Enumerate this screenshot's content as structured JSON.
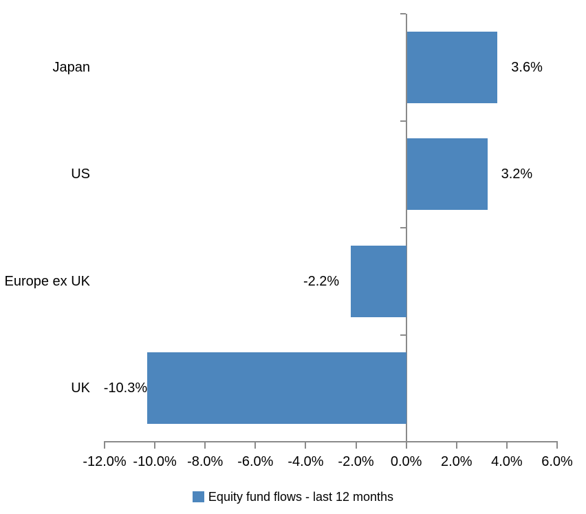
{
  "chart_data": {
    "type": "bar",
    "orientation": "horizontal",
    "title": "",
    "categories": [
      "Japan",
      "US",
      "Europe ex UK",
      "UK"
    ],
    "values": [
      3.6,
      3.2,
      -2.2,
      -10.3
    ],
    "data_labels": [
      "3.6%",
      "3.2%",
      "-2.2%",
      "-10.3%"
    ],
    "series_name": "Equity fund flows - last 12 months",
    "xlim": [
      -12,
      6
    ],
    "x_tick_step": 2,
    "x_tick_labels": [
      "-12.0%",
      "-10.0%",
      "-8.0%",
      "-6.0%",
      "-4.0%",
      "-2.0%",
      "0.0%",
      "2.0%",
      "4.0%",
      "6.0%"
    ],
    "ylabel": "",
    "xlabel": "",
    "grid": false,
    "legend_position": "bottom",
    "bar_color": "#4d86bd",
    "axis_color": "#8a8a8a",
    "text_color": "#000000"
  },
  "legend": {
    "label": "Equity fund flows - last 12 months",
    "swatch_color": "#4d86bd"
  }
}
